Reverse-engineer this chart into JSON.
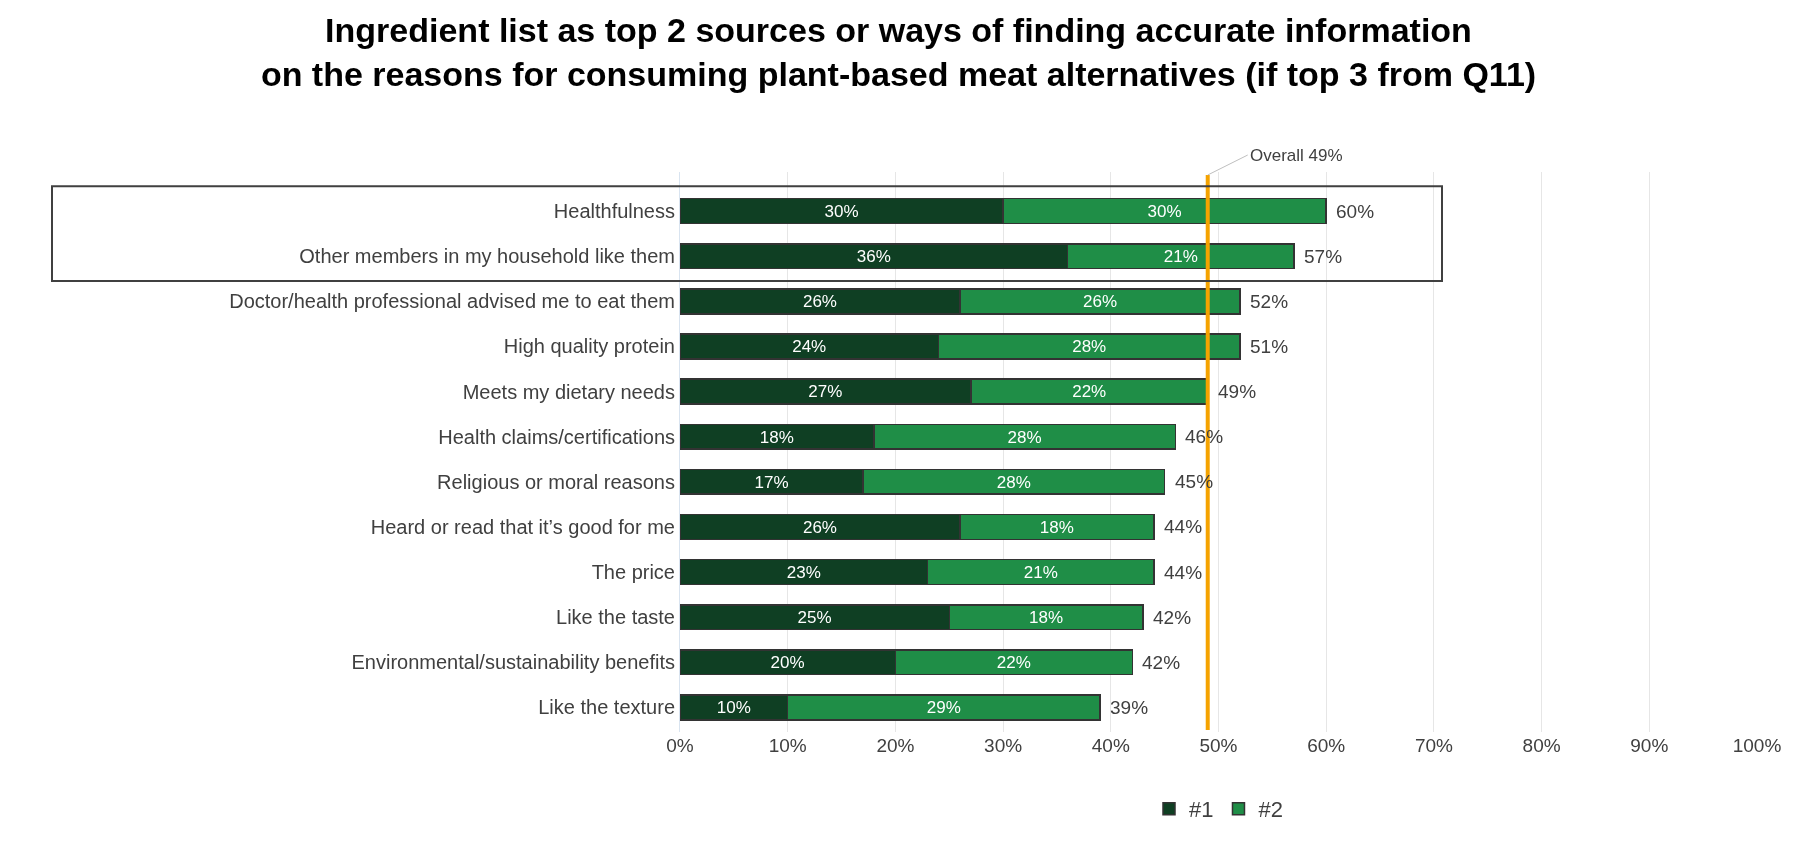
{
  "chart_data": {
    "type": "bar",
    "orientation": "horizontal",
    "stacked": true,
    "title": "Ingredient list as top 2 sources or ways of finding accurate information\non the reasons for consuming plant-based meat alternatives (if top 3 from Q11)",
    "categories": [
      "Healthfulness",
      "Other members in my household like them",
      "Doctor/health professional advised me to eat them",
      "High quality protein",
      "Meets my dietary needs",
      "Health claims/certifications",
      "Religious or moral reasons",
      "Heard or read that it’s good for me",
      "The price",
      "Like the taste",
      "Environmental/sustainability benefits",
      "Like the texture"
    ],
    "series": [
      {
        "name": "#1",
        "color": "#0f3f23",
        "values": [
          30,
          36,
          26,
          24,
          27,
          18,
          17,
          26,
          23,
          25,
          20,
          10
        ],
        "value_labels": [
          "30%",
          "36%",
          "26%",
          "24%",
          "27%",
          "18%",
          "17%",
          "26%",
          "23%",
          "25%",
          "20%",
          "10%"
        ]
      },
      {
        "name": "#2",
        "color": "#1f8e47",
        "values": [
          30,
          21,
          26,
          28,
          22,
          28,
          28,
          18,
          21,
          18,
          22,
          29
        ],
        "value_labels": [
          "30%",
          "21%",
          "26%",
          "28%",
          "22%",
          "28%",
          "28%",
          "18%",
          "21%",
          "18%",
          "22%",
          "29%"
        ]
      }
    ],
    "totals": [
      "60%",
      "57%",
      "52%",
      "51%",
      "49%",
      "46%",
      "45%",
      "44%",
      "44%",
      "42%",
      "42%",
      "39%"
    ],
    "xlim": [
      0,
      100
    ],
    "xticks": [
      {
        "value": 0,
        "label": "0%"
      },
      {
        "value": 10,
        "label": "10%"
      },
      {
        "value": 20,
        "label": "20%"
      },
      {
        "value": 30,
        "label": "30%"
      },
      {
        "value": 40,
        "label": "40%"
      },
      {
        "value": 50,
        "label": "50%"
      },
      {
        "value": 60,
        "label": "60%"
      },
      {
        "value": 70,
        "label": "70%"
      },
      {
        "value": 80,
        "label": "80%"
      },
      {
        "value": 90,
        "label": "90%"
      },
      {
        "value": 100,
        "label": "100%"
      }
    ],
    "ref_lines": [
      {
        "axis": "x",
        "value": 49,
        "label": "Overall 49%",
        "color": "#f5a300"
      }
    ],
    "grid": "x",
    "legend": "bottom"
  }
}
